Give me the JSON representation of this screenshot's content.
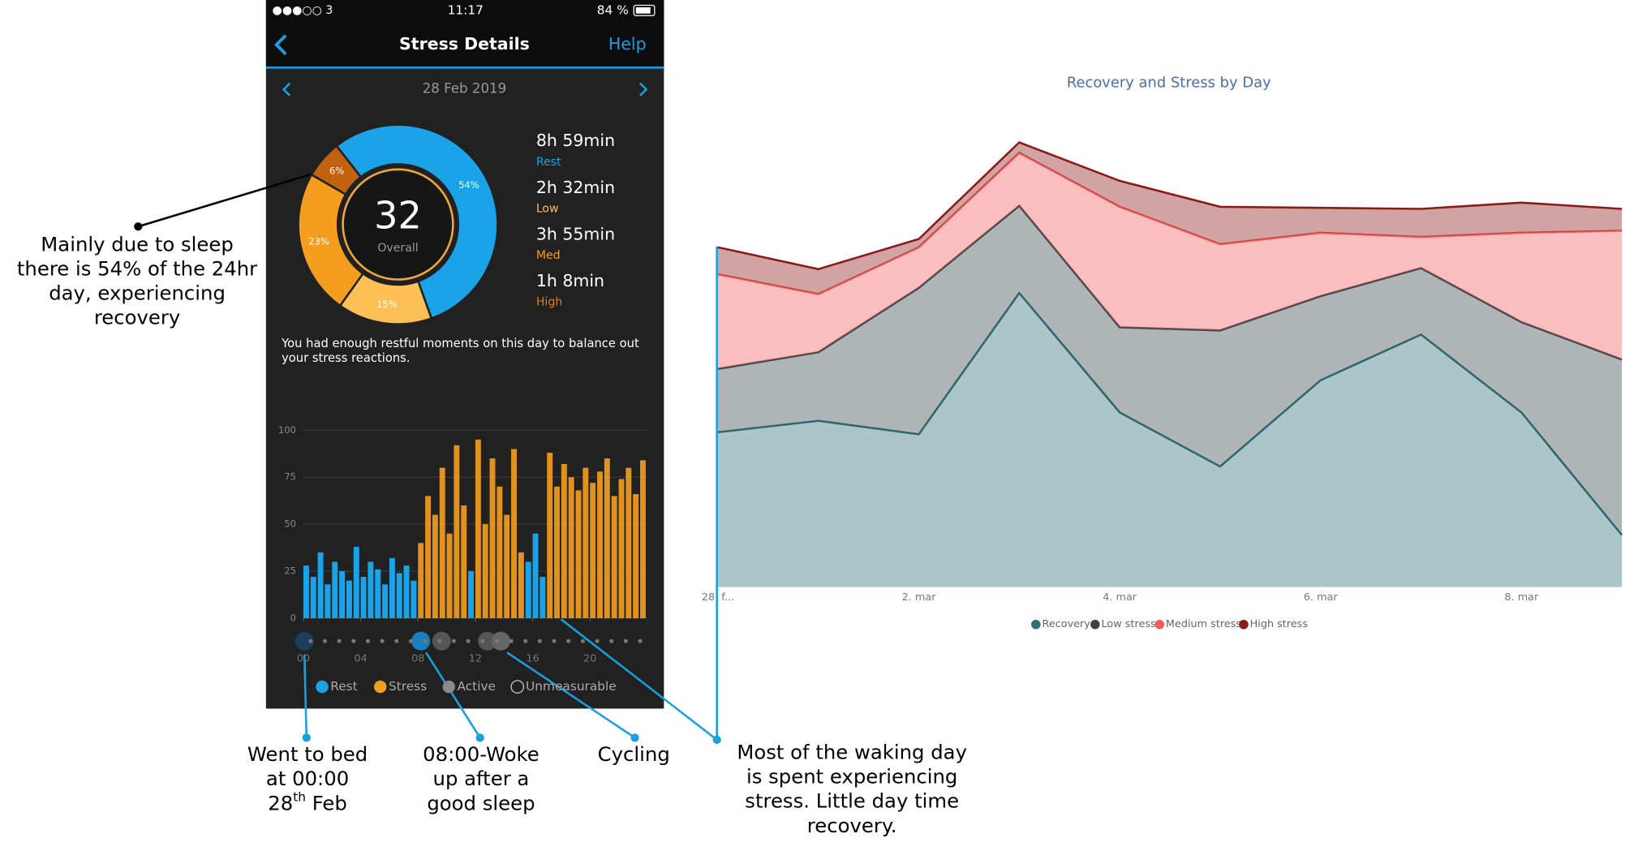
{
  "phone": {
    "status": {
      "carrier": "●●●○○ 3",
      "time": "11:17",
      "battery": "84 %"
    },
    "title": "Stress Details",
    "help": "Help",
    "date": "28 Feb 2019",
    "stats": [
      {
        "duration": "8h 59min",
        "name": "Rest",
        "color": "#1ba3ea"
      },
      {
        "duration": "2h 32min",
        "name": "Low",
        "color": "#ffbf57"
      },
      {
        "duration": "3h 55min",
        "name": "Med",
        "color": "#f59d1e"
      },
      {
        "duration": "1h 8min",
        "name": "High",
        "color": "#e07b1a"
      }
    ],
    "message": [
      "You had enough restful moments on this day to balance out",
      "your stress reactions."
    ]
  },
  "chart_data": [
    {
      "type": "bar",
      "xlim": [
        0,
        24
      ],
      "xticks": [
        {
          "value": 0,
          "label": "00"
        },
        {
          "value": 4,
          "label": "04"
        },
        {
          "value": 8,
          "label": "08"
        },
        {
          "value": 12,
          "label": "12"
        },
        {
          "value": 16,
          "label": "16"
        },
        {
          "value": 20,
          "label": "20"
        }
      ],
      "ylim": [
        0,
        100
      ],
      "yticks": [
        0,
        25,
        50,
        75,
        100
      ],
      "grid": true,
      "series": [
        {
          "name": "Rest",
          "color": "#1ba3ea",
          "x": [
            0,
            0.5,
            1,
            1.5,
            2,
            2.5,
            3,
            3.5,
            4,
            4.5,
            5,
            5.5,
            6,
            6.5,
            7,
            7.5,
            11.5,
            15.5,
            16,
            16.5
          ],
          "values": [
            28,
            22,
            35,
            18,
            30,
            25,
            20,
            38,
            22,
            30,
            26,
            18,
            32,
            24,
            28,
            20,
            25,
            30,
            45,
            22
          ]
        },
        {
          "name": "Stress",
          "color": "#f59d1e",
          "x": [
            8,
            8.5,
            9,
            9.5,
            10,
            10.5,
            11,
            12,
            12.5,
            13,
            13.5,
            14,
            14.5,
            15,
            17,
            17.5,
            18,
            18.5,
            19,
            19.5,
            20,
            20.5,
            21,
            21.5,
            22,
            22.5,
            23,
            23.5
          ],
          "values": [
            40,
            65,
            55,
            80,
            45,
            92,
            60,
            95,
            50,
            85,
            70,
            55,
            90,
            35,
            88,
            70,
            82,
            75,
            68,
            80,
            72,
            78,
            85,
            65,
            74,
            80,
            66,
            84
          ]
        },
        {
          "name": "Active",
          "color": "#8a8a8a",
          "x": [],
          "values": []
        },
        {
          "name": "Unmeasurable",
          "color": "none",
          "x": [],
          "values": []
        }
      ]
    },
    {
      "type": "pie",
      "values": [
        54,
        15,
        23,
        6
      ],
      "value_labels": [
        "54%",
        "15%",
        "23%",
        "6%"
      ],
      "colors": [
        "#1ba3ea",
        "#ffbf57",
        "#f59d1e",
        "#c3620e"
      ],
      "center_value": "32",
      "center_label": "Overall"
    },
    {
      "type": "area",
      "stacked": true,
      "title": "Recovery and Stress by Day",
      "categories": [
        "28. f...",
        null,
        "2. mar",
        null,
        "4. mar",
        null,
        "6. mar",
        null,
        "8. mar",
        null
      ],
      "ylim": [
        0,
        440
      ],
      "series": [
        {
          "name": "Recovery",
          "color": "#2f6f77",
          "values": [
            149,
            160,
            147,
            283,
            168,
            116,
            199,
            243,
            168,
            50
          ]
        },
        {
          "name": "Low stress",
          "color": "#374649",
          "values": [
            61,
            66,
            141,
            84,
            82,
            131,
            81,
            64,
            87,
            169
          ]
        },
        {
          "name": "Medium stress",
          "color": "#f05d5a",
          "values": [
            91,
            56,
            39,
            51,
            116,
            83,
            61,
            30,
            86,
            124
          ]
        },
        {
          "name": "High stress",
          "color": "#8b1a1a",
          "values": [
            26,
            24,
            8,
            10,
            25,
            36,
            24,
            27,
            29,
            21
          ]
        }
      ]
    }
  ],
  "annotations": [
    {
      "lines": [
        "Mainly due to sleep",
        "there is 54% of the 24hr",
        "day, experiencing",
        "recovery"
      ]
    },
    {
      "lines": [
        "Went to bed",
        "at 00:00"
      ],
      "day": "28",
      "sup": "th",
      "month": " Feb"
    },
    {
      "lines": [
        "08:00-Woke",
        "up after a",
        "good sleep"
      ]
    },
    {
      "lines": [
        "Cycling"
      ]
    },
    {
      "lines": [
        "Most of the waking day",
        "is spent experiencing",
        "stress. Little day time",
        "recovery."
      ]
    }
  ]
}
